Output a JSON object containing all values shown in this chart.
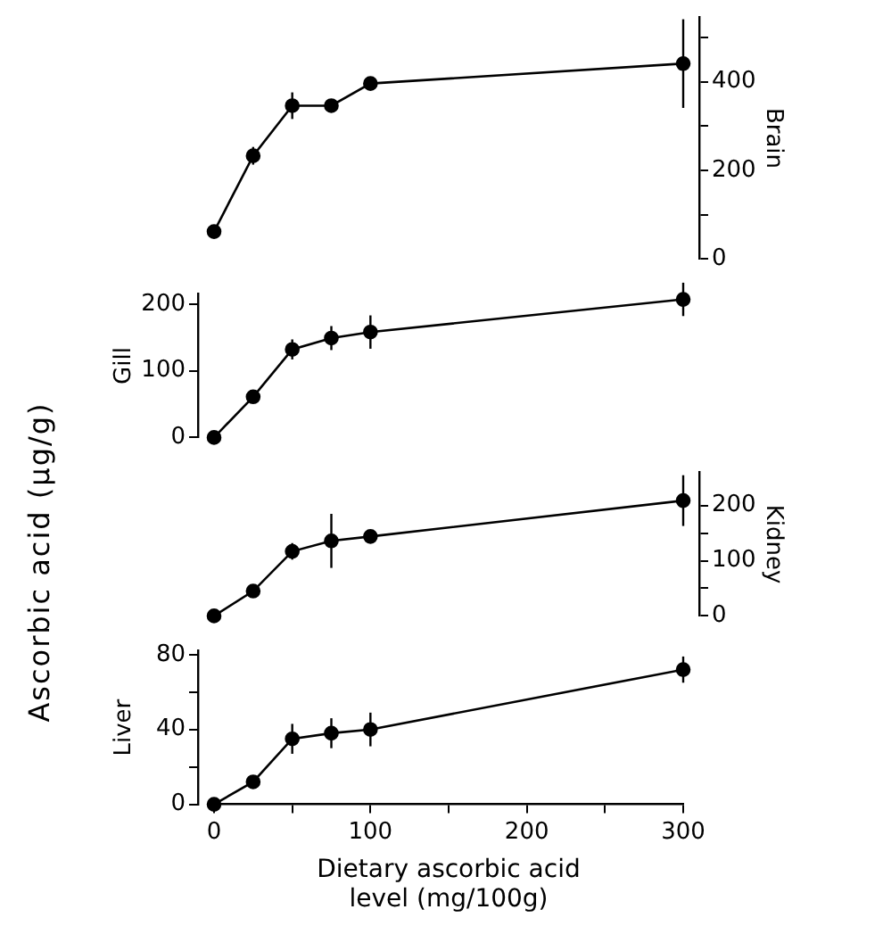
{
  "chart_data": [
    {
      "type": "line",
      "x": [
        0,
        25,
        50,
        75,
        100,
        300
      ],
      "series": [
        {
          "color": "#000000",
          "axis": "y2",
          "values": [
            62,
            233,
            346,
            346,
            396,
            441
          ],
          "errors": [
            null,
            20,
            30,
            null,
            10,
            100
          ]
        }
      ],
      "y2label": "Brain",
      "y2lim": [
        0,
        545
      ],
      "y2ticks": [
        0,
        {
          "value": 100,
          "label": null
        },
        200,
        {
          "value": 300,
          "label": null
        },
        400,
        {
          "value": 500,
          "label": null
        }
      ],
      "xlim": [
        0,
        300
      ],
      "tick_labels": "y",
      "marker": "circle"
    },
    {
      "type": "line",
      "x": [
        0,
        25,
        50,
        75,
        100,
        300
      ],
      "series": [
        {
          "color": "#000000",
          "values": [
            0,
            61,
            132,
            149,
            158,
            207
          ],
          "errors": [
            null,
            5,
            15,
            18,
            25,
            25
          ]
        }
      ],
      "ylabel": "Gill",
      "ylim": [
        0,
        215
      ],
      "yticks": [
        0,
        100,
        200
      ],
      "xlim": [
        0,
        300
      ],
      "tick_labels": "y",
      "marker": "circle"
    },
    {
      "type": "line",
      "x": [
        0,
        25,
        50,
        75,
        100,
        300
      ],
      "series": [
        {
          "color": "#000000",
          "axis": "y2",
          "values": [
            0,
            45,
            117,
            136,
            144,
            209
          ],
          "errors": [
            null,
            8,
            15,
            49,
            5,
            46
          ]
        }
      ],
      "y2label": "Kidney",
      "y2lim": [
        0,
        260
      ],
      "y2ticks": [
        0,
        {
          "value": 50,
          "label": null
        },
        100,
        {
          "value": 150,
          "label": null
        },
        200
      ],
      "xlim": [
        0,
        300
      ],
      "tick_labels": "y",
      "marker": "circle"
    },
    {
      "type": "line",
      "x": [
        0,
        25,
        50,
        75,
        100,
        300
      ],
      "series": [
        {
          "color": "#000000",
          "values": [
            0,
            12,
            35,
            38,
            40,
            72
          ],
          "errors": [
            null,
            3,
            8,
            8,
            9,
            7
          ]
        }
      ],
      "ylabel": "Liver",
      "ylim": [
        0,
        82
      ],
      "yticks": [
        0,
        {
          "value": 20,
          "label": null
        },
        40,
        {
          "value": 60,
          "label": null
        },
        80
      ],
      "xlim": [
        0,
        300
      ],
      "xticks": [
        0,
        {
          "value": 50,
          "label": null
        },
        100,
        {
          "value": 150,
          "label": null
        },
        200,
        {
          "value": 250,
          "label": null
        },
        300
      ],
      "xlabel": "Dietary ascorbic acid\nlevel (mg/100g)",
      "annotations": [
        "Ascorbic acid (μg/g)"
      ],
      "marker": "circle"
    }
  ]
}
